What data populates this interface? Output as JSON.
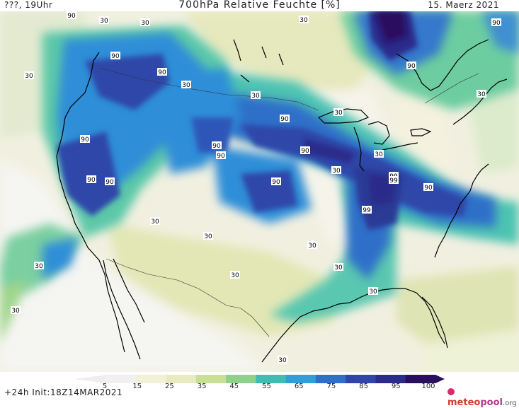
{
  "header": {
    "left": "???, 19Uhr",
    "title": "700hPa Relative Feuchte [%]",
    "right": "15. Maerz 2021"
  },
  "legend": {
    "ticks": [
      "5",
      "15",
      "25",
      "35",
      "45",
      "55",
      "65",
      "75",
      "85",
      "95",
      "100"
    ],
    "colors": [
      "#f0f0f0",
      "#f3f0d8",
      "#e8ebbf",
      "#c9de97",
      "#8fd08a",
      "#3fbdb3",
      "#2e9fd8",
      "#2f6fc9",
      "#2f46a8",
      "#2b2b8a",
      "#2a0f5e"
    ]
  },
  "contour_labels": [
    {
      "text": "90"
    },
    {
      "text": "30"
    },
    {
      "text": "30"
    },
    {
      "text": "90"
    },
    {
      "text": "90"
    },
    {
      "text": "30"
    },
    {
      "text": "90"
    },
    {
      "text": "30"
    },
    {
      "text": "30"
    },
    {
      "text": "90"
    },
    {
      "text": "90"
    },
    {
      "text": "90"
    },
    {
      "text": "30"
    },
    {
      "text": "90"
    },
    {
      "text": "90"
    },
    {
      "text": "90"
    },
    {
      "text": "90"
    },
    {
      "text": "90"
    },
    {
      "text": "90"
    },
    {
      "text": "99"
    },
    {
      "text": "99"
    },
    {
      "text": "90"
    },
    {
      "text": "30"
    },
    {
      "text": "30"
    },
    {
      "text": "30"
    },
    {
      "text": "30"
    },
    {
      "text": "30"
    },
    {
      "text": "30"
    },
    {
      "text": "30"
    },
    {
      "text": "30"
    },
    {
      "text": "30"
    },
    {
      "text": "99"
    },
    {
      "text": "30"
    },
    {
      "text": "30"
    },
    {
      "text": "30"
    },
    {
      "text": "30"
    }
  ],
  "footer": {
    "run": "+24h  Init:18Z14MAR2021",
    "brand_main": "meteo",
    "brand_accent": "pool",
    "brand_tld": ".org"
  }
}
